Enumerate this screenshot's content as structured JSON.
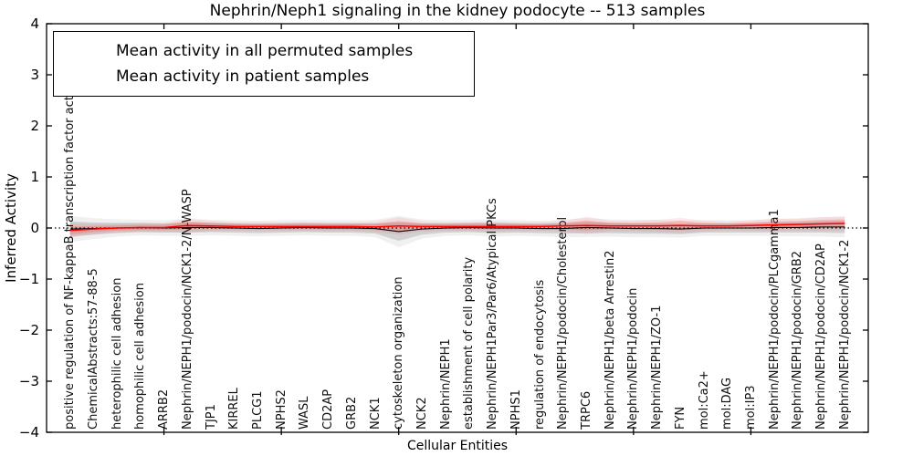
{
  "title": "Nephrin/Neph1 signaling in the kidney podocyte -- 513 samples",
  "axes": {
    "ylabel": "Inferred Activity",
    "xlabel": "Cellular Entities"
  },
  "legend": {
    "entries": [
      {
        "label": "Mean activity in all permuted samples",
        "color": "#000000"
      },
      {
        "label": "Mean activity in patient samples",
        "color": "#ff0000"
      }
    ]
  },
  "colors": {
    "permuted_line": "#000000",
    "patient_line": "#ff0000",
    "background": "#ffffff",
    "zero_line": "#000000"
  },
  "chart_data": {
    "type": "line",
    "title": "Nephrin/Neph1 signaling in the kidney podocyte -- 513 samples",
    "xlabel": "Cellular Entities",
    "ylabel": "Inferred Activity",
    "ylim": [
      -4,
      4
    ],
    "y_ticks": [
      -4,
      -3,
      -2,
      -1,
      0,
      1,
      2,
      3,
      4
    ],
    "x_tick_units": [
      5,
      10,
      15,
      20,
      25,
      30
    ],
    "grid": false,
    "legend_position": "upper left",
    "zero_line_style": "dotted",
    "categories": [
      "positive regulation of NF-kappaB transcription factor activity",
      "ChemicalAbstracts:57-88-5",
      "heterophilic cell adhesion",
      "homophilic cell adhesion",
      "ARRB2",
      "Nephrin/NEPH1/podocin/NCK1-2/N-WASP",
      "TJP1",
      "KIRREL",
      "PLCG1",
      "NPHS2",
      "WASL",
      "CD2AP",
      "GRB2",
      "NCK1",
      "cytoskeleton organization",
      "NCK2",
      "Nephrin/NEPH1",
      "establishment of cell polarity",
      "Nephrin/NEPH1Par3/Par6/Atypical PKCs",
      "NPHS1",
      "regulation of endocytosis",
      "Nephrin/NEPH1/podocin/Cholesterol",
      "TRPC6",
      "Nephrin/NEPH1/beta Arrestin2",
      "Nephrin/NEPH1/podocin",
      "Nephrin/NEPH1/ZO-1",
      "FYN",
      "mol:Ca2+",
      "mol:DAG",
      "mol:IP3",
      "Nephrin/NEPH1/podocin/PLCgamma1",
      "Nephrin/NEPH1/podocin/GRB2",
      "Nephrin/NEPH1/podocin/CD2AP",
      "Nephrin/NEPH1/podocin/NCK1-2"
    ],
    "series": [
      {
        "name": "Mean activity in all permuted samples",
        "color": "#000000",
        "values": [
          -0.02,
          -0.01,
          0,
          0.01,
          0,
          0.01,
          0.01,
          0,
          -0.01,
          0,
          0.01,
          0,
          0,
          -0.01,
          -0.07,
          -0.02,
          0,
          0.01,
          0,
          0,
          -0.01,
          -0.01,
          0.01,
          0,
          -0.01,
          -0.01,
          -0.02,
          0,
          0,
          0,
          0.01,
          0.01,
          0.02,
          0.02
        ],
        "band": [
          0.15,
          0.12,
          0.1,
          0.09,
          0.09,
          0.1,
          0.09,
          0.09,
          0.09,
          0.09,
          0.09,
          0.09,
          0.09,
          0.1,
          0.18,
          0.11,
          0.09,
          0.09,
          0.1,
          0.09,
          0.09,
          0.1,
          0.11,
          0.1,
          0.1,
          0.1,
          0.1,
          0.09,
          0.09,
          0.09,
          0.1,
          0.1,
          0.11,
          0.12
        ]
      },
      {
        "name": "Mean activity in patient samples",
        "color": "#ff0000",
        "values": [
          -0.05,
          -0.02,
          0,
          0.01,
          0.01,
          0.05,
          0.04,
          0.03,
          0.03,
          0.03,
          0.03,
          0.03,
          0.03,
          0.02,
          0.04,
          0.03,
          0.03,
          0.03,
          0.03,
          0.03,
          0.03,
          0.04,
          0.05,
          0.04,
          0.04,
          0.04,
          0.05,
          0.04,
          0.04,
          0.05,
          0.06,
          0.07,
          0.08,
          0.09
        ],
        "band": [
          0.08,
          0.06,
          0.05,
          0.05,
          0.05,
          0.08,
          0.06,
          0.05,
          0.05,
          0.05,
          0.05,
          0.05,
          0.05,
          0.06,
          0.1,
          0.06,
          0.05,
          0.05,
          0.06,
          0.05,
          0.05,
          0.06,
          0.1,
          0.06,
          0.06,
          0.07,
          0.09,
          0.06,
          0.05,
          0.06,
          0.07,
          0.07,
          0.08,
          0.08
        ]
      }
    ]
  }
}
